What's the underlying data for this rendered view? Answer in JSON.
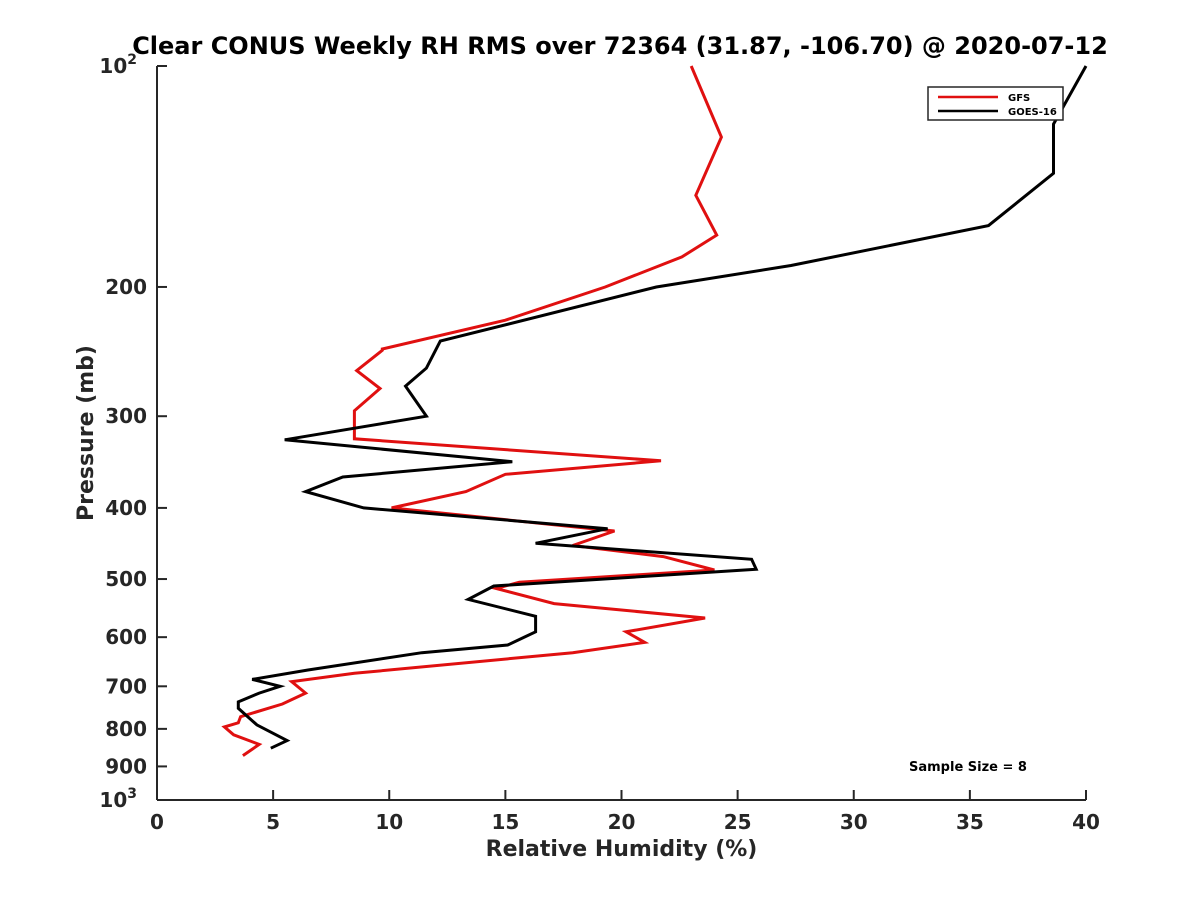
{
  "chart_data": {
    "type": "line",
    "title": "Clear CONUS Weekly RH RMS over 72364 (31.87, -106.70) @ 2020-07-12",
    "xlabel": "Relative Humidity (%)",
    "ylabel": "Pressure (mb)",
    "xlim": [
      0,
      40
    ],
    "ylim": [
      1000,
      100
    ],
    "y_scale": "log",
    "y_reversed": true,
    "grid": false,
    "legend_position": "top-right",
    "x_ticks": [
      {
        "value": 0,
        "label": "0"
      },
      {
        "value": 5,
        "label": "5"
      },
      {
        "value": 10,
        "label": "10"
      },
      {
        "value": 15,
        "label": "15"
      },
      {
        "value": 20,
        "label": "20"
      },
      {
        "value": 25,
        "label": "25"
      },
      {
        "value": 30,
        "label": "30"
      },
      {
        "value": 35,
        "label": "35"
      },
      {
        "value": 40,
        "label": "40"
      }
    ],
    "y_ticks": [
      {
        "value": 100,
        "label": "10",
        "sup": "2"
      },
      {
        "value": 200,
        "label": "200",
        "sup": ""
      },
      {
        "value": 300,
        "label": "300",
        "sup": ""
      },
      {
        "value": 400,
        "label": "400",
        "sup": ""
      },
      {
        "value": 500,
        "label": "500",
        "sup": ""
      },
      {
        "value": 600,
        "label": "600",
        "sup": ""
      },
      {
        "value": 700,
        "label": "700",
        "sup": ""
      },
      {
        "value": 800,
        "label": "800",
        "sup": ""
      },
      {
        "value": 900,
        "label": "900",
        "sup": ""
      },
      {
        "value": 1000,
        "label": "10",
        "sup": "3"
      }
    ],
    "series": [
      {
        "name": "GFS",
        "color": "#e01010",
        "points": [
          [
            23.0,
            100
          ],
          [
            24.3,
            125
          ],
          [
            23.2,
            150
          ],
          [
            24.1,
            170
          ],
          [
            22.6,
            182
          ],
          [
            19.3,
            200
          ],
          [
            15.0,
            222
          ],
          [
            9.7,
            243
          ],
          [
            9.7,
            244
          ],
          [
            8.6,
            260
          ],
          [
            9.6,
            275
          ],
          [
            8.5,
            295
          ],
          [
            8.5,
            300
          ],
          [
            8.5,
            322
          ],
          [
            21.7,
            345
          ],
          [
            15.0,
            360
          ],
          [
            13.3,
            380
          ],
          [
            10.1,
            400
          ],
          [
            19.7,
            430
          ],
          [
            17.9,
            450
          ],
          [
            21.8,
            466
          ],
          [
            24.0,
            486
          ],
          [
            15.6,
            505
          ],
          [
            14.6,
            515
          ],
          [
            17.1,
            540
          ],
          [
            23.6,
            565
          ],
          [
            20.2,
            590
          ],
          [
            21.0,
            610
          ],
          [
            17.9,
            630
          ],
          [
            8.5,
            672
          ],
          [
            5.8,
            690
          ],
          [
            6.4,
            715
          ],
          [
            5.4,
            740
          ],
          [
            3.6,
            770
          ],
          [
            3.5,
            785
          ],
          [
            2.9,
            795
          ],
          [
            3.3,
            815
          ],
          [
            4.4,
            840
          ],
          [
            3.7,
            870
          ]
        ]
      },
      {
        "name": "GOES-16",
        "color": "#000000",
        "points": [
          [
            40.0,
            100
          ],
          [
            38.6,
            120
          ],
          [
            38.6,
            140
          ],
          [
            35.8,
            165
          ],
          [
            27.3,
            187
          ],
          [
            21.5,
            200
          ],
          [
            12.2,
            237
          ],
          [
            11.6,
            258
          ],
          [
            10.7,
            273
          ],
          [
            11.6,
            300
          ],
          [
            5.5,
            323
          ],
          [
            15.3,
            346
          ],
          [
            8.0,
            363
          ],
          [
            6.4,
            380
          ],
          [
            8.9,
            400
          ],
          [
            19.4,
            427
          ],
          [
            16.3,
            447
          ],
          [
            25.6,
            470
          ],
          [
            25.8,
            485
          ],
          [
            14.5,
            511
          ],
          [
            13.4,
            533
          ],
          [
            16.3,
            562
          ],
          [
            16.3,
            590
          ],
          [
            15.1,
            615
          ],
          [
            11.4,
            630
          ],
          [
            6.5,
            665
          ],
          [
            4.1,
            685
          ],
          [
            5.3,
            700
          ],
          [
            4.4,
            715
          ],
          [
            3.5,
            735
          ],
          [
            3.5,
            750
          ],
          [
            4.3,
            790
          ],
          [
            5.6,
            830
          ],
          [
            4.9,
            850
          ]
        ]
      }
    ],
    "annotation": "Sample Size = 8"
  }
}
